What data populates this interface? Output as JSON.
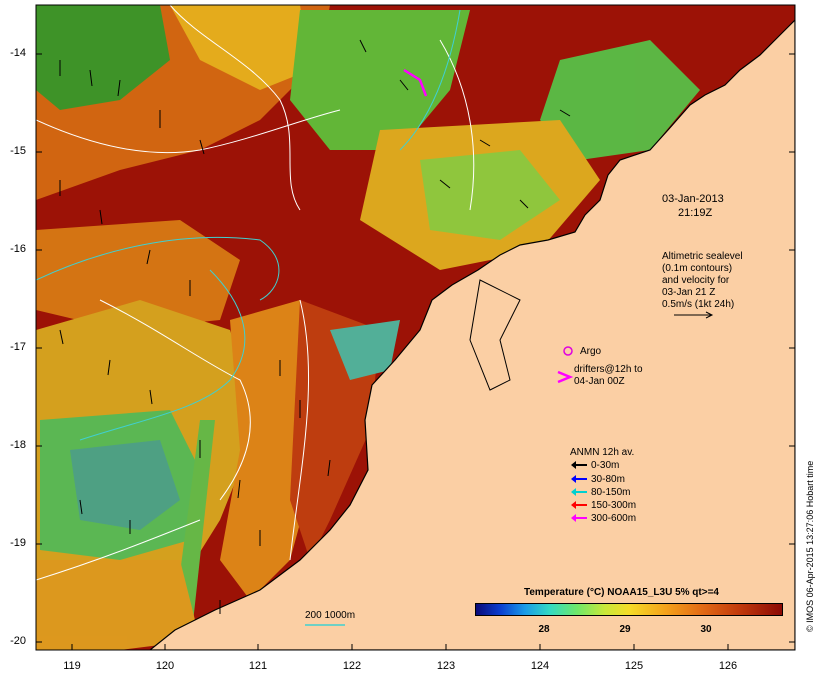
{
  "map": {
    "lat_ticks": [
      "-14",
      "-15",
      "-16",
      "-17",
      "-18",
      "-19",
      "-20"
    ],
    "lon_ticks": [
      "119",
      "120",
      "121",
      "122",
      "123",
      "124",
      "125",
      "126"
    ],
    "timestamp_date": "03-Jan-2013",
    "timestamp_time": "21:19Z",
    "altimetry_lines": [
      "Altimetric sealevel",
      "(0.1m contours)",
      "and velocity for",
      "03-Jan 21 Z",
      "0.5m/s (1kt 24h)"
    ],
    "argo_label": "Argo",
    "drifters_lines": [
      "drifters@12h to",
      "04-Jan 00Z"
    ],
    "anmn_title": "ANMN 12h av.",
    "depth_legend": [
      {
        "label": "0-30m",
        "color": "#000000"
      },
      {
        "label": "30-80m",
        "color": "#0000ff"
      },
      {
        "label": "80-150m",
        "color": "#00d0d0"
      },
      {
        "label": "150-300m",
        "color": "#ff0000"
      },
      {
        "label": "300-600m",
        "color": "#ff00ff"
      }
    ],
    "colorbar_title": "Temperature (°C) NOAA15_L3U 5% qt>=4",
    "colorbar_ticks": [
      "28",
      "29",
      "30"
    ],
    "bathy_label": "200  1000m",
    "credit": "© IMOS 06-Apr-2015 13:27:06 Hobart time",
    "colors": {
      "land": "#fbcfa4",
      "warm": "#8b0a05",
      "argo": "#e000e0",
      "drifter": "#ff00ff",
      "isobath": "#40d0d0"
    }
  }
}
